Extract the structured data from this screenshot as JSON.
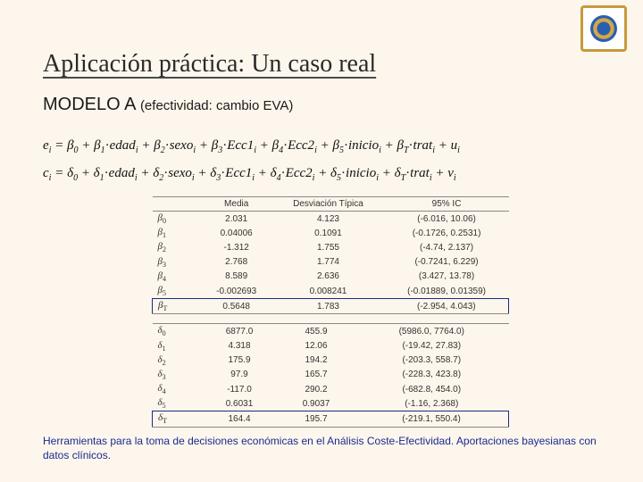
{
  "title": "Aplicación práctica: Un caso real",
  "subtitle_main": "MODELO A ",
  "subtitle_paren": "(efectividad: cambio EVA)",
  "eq1": "e_i = β_0 + β_1·edad_i + β_2·sexo_i + β_3·Ecc1_i + β_4·Ecc2_i + β_5·inicio_i + β_T·trat_i + u_i",
  "eq2": "c_i = δ_0 + δ_1·edad_i + δ_2·sexo_i + δ_3·Ecc1_i + δ_4·Ecc2_i + δ_5·inicio_i + δ_T·trat_i + v_i",
  "table_headers": [
    "",
    "Media",
    "Desviación Típica",
    "95% IC"
  ],
  "table1": {
    "param_symbol": "β",
    "rows": [
      {
        "idx": "0",
        "media": "2.031",
        "dt": "4.123",
        "ic": "(-6.016, 10.06)"
      },
      {
        "idx": "1",
        "media": "0.04006",
        "dt": "0.1091",
        "ic": "(-0.1726, 0.2531)"
      },
      {
        "idx": "2",
        "media": "-1.312",
        "dt": "1.755",
        "ic": "(-4.74, 2.137)"
      },
      {
        "idx": "3",
        "media": "2.768",
        "dt": "1.774",
        "ic": "(-0.7241, 6.229)"
      },
      {
        "idx": "4",
        "media": "8.589",
        "dt": "2.636",
        "ic": "(3.427, 13.78)"
      },
      {
        "idx": "5",
        "media": "-0.002693",
        "dt": "0.008241",
        "ic": "(-0.01889, 0.01359)"
      },
      {
        "idx": "T",
        "media": "0.5648",
        "dt": "1.783",
        "ic": "(-2.954, 4.043)"
      }
    ]
  },
  "table2": {
    "param_symbol": "δ",
    "rows": [
      {
        "idx": "0",
        "media": "6877.0",
        "dt": "455.9",
        "ic": "(5986.0, 7764.0)"
      },
      {
        "idx": "1",
        "media": "4.318",
        "dt": "12.06",
        "ic": "(-19.42, 27.83)"
      },
      {
        "idx": "2",
        "media": "175.9",
        "dt": "194.2",
        "ic": "(-203.3, 558.7)"
      },
      {
        "idx": "3",
        "media": "97.9",
        "dt": "165.7",
        "ic": "(-228.3, 423.8)"
      },
      {
        "idx": "4",
        "media": "-117.0",
        "dt": "290.2",
        "ic": "(-682.8, 454.0)"
      },
      {
        "idx": "5",
        "media": "0.6031",
        "dt": "0.9037",
        "ic": "(-1.16, 2.368)"
      },
      {
        "idx": "T",
        "media": "164.4",
        "dt": "195.7",
        "ic": "(-219.1, 550.4)"
      }
    ]
  },
  "footer": "Herramientas para la toma de decisiones económicas en el Análisis Coste-Efectividad. Aportaciones bayesianas con datos clínicos.",
  "colors": {
    "background": "#fdf6ec",
    "title": "#2a2a2a",
    "footer": "#1a2a90",
    "highlight_border": "#1a2a80",
    "logo_border": "#c79a3a"
  }
}
